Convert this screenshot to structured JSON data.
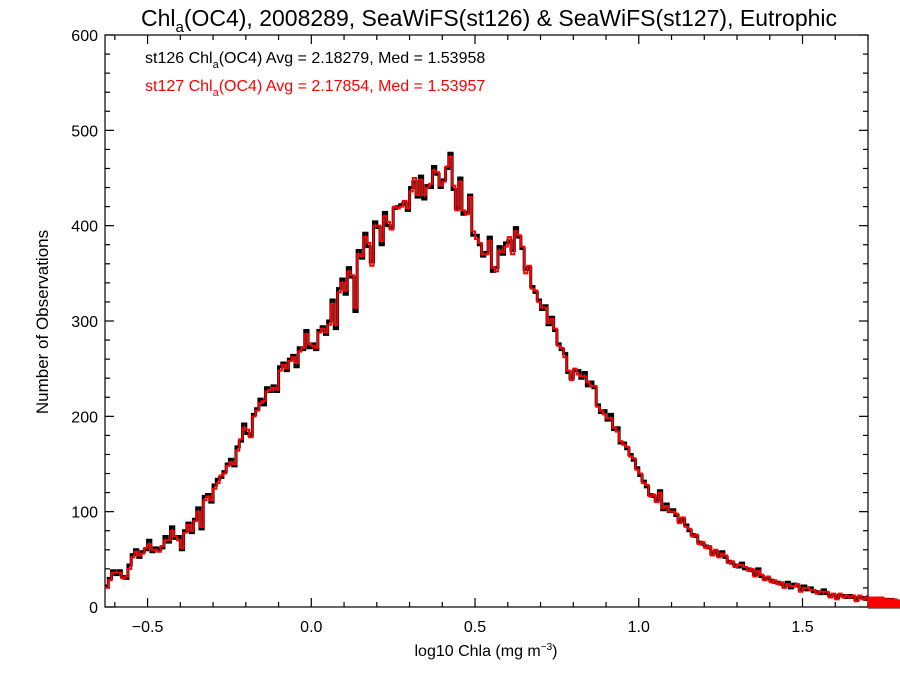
{
  "chart_data": {
    "type": "line",
    "title": {
      "pre": "Chl",
      "sub": "a",
      "post": "(OC4), 2008289, SeaWiFS(st126) & SeaWiFS(st127), Eutrophic"
    },
    "xlabel": {
      "pre": "log10 Chla (mg m",
      "sup": "−3",
      "post": ")"
    },
    "ylabel": "Number of Observations",
    "xlim": [
      -0.63,
      1.7
    ],
    "ylim": [
      0,
      600
    ],
    "x_ticks": [
      {
        "value": -0.5,
        "label": "−0.5"
      },
      {
        "value": 0.0,
        "label": "0.0"
      },
      {
        "value": 0.5,
        "label": "0.5"
      },
      {
        "value": 1.0,
        "label": "1.0"
      },
      {
        "value": 1.5,
        "label": "1.5"
      }
    ],
    "y_ticks": [
      {
        "value": 0,
        "label": "0"
      },
      {
        "value": 100,
        "label": "100"
      },
      {
        "value": 200,
        "label": "200"
      },
      {
        "value": 300,
        "label": "300"
      },
      {
        "value": 400,
        "label": "400"
      },
      {
        "value": 500,
        "label": "500"
      },
      {
        "value": 600,
        "label": "600"
      }
    ],
    "grid": false,
    "legend_position": "top-left",
    "bin_start": -0.63,
    "bin_width": 0.01,
    "series": [
      {
        "name": "st126",
        "legend": {
          "pre": "st126 Chl",
          "sub": "a",
          "post": "(OC4) Avg = 2.18279, Med = 1.53958"
        },
        "color": "#000000",
        "values": [
          22,
          30,
          38,
          34,
          38,
          32,
          30,
          44,
          55,
          60,
          52,
          58,
          60,
          70,
          58,
          62,
          60,
          62,
          74,
          68,
          84,
          72,
          74,
          60,
          80,
          88,
          78,
          92,
          104,
          82,
          116,
          118,
          110,
          128,
          134,
          136,
          142,
          150,
          155,
          148,
          168,
          174,
          192,
          182,
          180,
          202,
          208,
          218,
          212,
          230,
          226,
          232,
          226,
          252,
          256,
          248,
          260,
          264,
          252,
          272,
          270,
          290,
          272,
          276,
          270,
          290,
          294,
          286,
          300,
          322,
          292,
          334,
          344,
          328,
          356,
          346,
          310,
          374,
          366,
          392,
          378,
          362,
          404,
          398,
          380,
          414,
          400,
          398,
          418,
          420,
          422,
          424,
          416,
          440,
          446,
          430,
          452,
          428,
          442,
          440,
          462,
          454,
          440,
          448,
          460,
          476,
          438,
          418,
          450,
          412,
          414,
          432,
          390,
          390,
          380,
          368,
          372,
          388,
          352,
          356,
          378,
          370,
          382,
          384,
          374,
          398,
          388,
          376,
          354,
          356,
          336,
          330,
          322,
          312,
          316,
          296,
          304,
          290,
          276,
          270,
          266,
          246,
          240,
          248,
          248,
          240,
          246,
          232,
          236,
          230,
          212,
          204,
          206,
          196,
          202,
          186,
          188,
          172,
          172,
          166,
          160,
          154,
          146,
          138,
          132,
          126,
          118,
          116,
          112,
          122,
          102,
          108,
          100,
          102,
          96,
          90,
          92,
          86,
          80,
          76,
          74,
          68,
          66,
          64,
          62,
          56,
          58,
          54,
          58,
          52,
          48,
          46,
          44,
          42,
          46,
          40,
          40,
          38,
          34,
          40,
          32,
          30,
          30,
          28,
          26,
          26,
          24,
          22,
          26,
          20,
          24,
          22,
          18,
          22,
          18,
          20,
          16,
          16,
          14,
          18,
          14,
          12,
          12,
          10,
          12,
          12,
          10,
          12,
          10,
          8,
          10,
          10,
          8,
          10,
          8,
          8,
          6,
          8,
          8,
          6,
          6,
          8,
          6,
          6,
          5,
          6,
          4,
          5,
          4,
          6,
          4,
          4,
          3,
          4,
          4,
          5,
          3,
          3,
          2,
          3,
          2,
          2,
          2,
          3,
          2,
          2,
          1,
          2,
          1,
          1,
          1,
          0,
          1,
          1,
          0,
          1,
          0,
          0,
          0,
          0,
          0,
          0,
          0,
          0,
          0
        ]
      },
      {
        "name": "st127",
        "legend": {
          "pre": "st127 Chl",
          "sub": "a",
          "post": "(OC4) Avg = 2.17854, Med = 1.53957"
        },
        "color": "#ff0000",
        "values": [
          20,
          28,
          36,
          36,
          36,
          30,
          32,
          40,
          52,
          58,
          54,
          56,
          62,
          66,
          60,
          60,
          58,
          64,
          70,
          70,
          80,
          74,
          70,
          62,
          78,
          86,
          80,
          90,
          100,
          84,
          112,
          116,
          112,
          124,
          130,
          138,
          140,
          148,
          152,
          150,
          164,
          176,
          188,
          186,
          178,
          200,
          206,
          214,
          216,
          226,
          228,
          230,
          228,
          248,
          254,
          250,
          258,
          262,
          256,
          268,
          272,
          286,
          276,
          274,
          272,
          288,
          292,
          288,
          296,
          318,
          296,
          330,
          340,
          332,
          352,
          348,
          314,
          370,
          368,
          388,
          382,
          358,
          400,
          400,
          384,
          410,
          404,
          396,
          420,
          418,
          420,
          426,
          418,
          436,
          450,
          432,
          448,
          432,
          440,
          444,
          458,
          456,
          442,
          446,
          462,
          472,
          442,
          416,
          446,
          416,
          412,
          430,
          394,
          386,
          382,
          370,
          370,
          384,
          356,
          352,
          374,
          372,
          378,
          388,
          370,
          394,
          390,
          378,
          350,
          358,
          334,
          332,
          320,
          314,
          314,
          298,
          302,
          292,
          274,
          272,
          262,
          248,
          238,
          250,
          244,
          242,
          242,
          236,
          232,
          232,
          210,
          206,
          202,
          198,
          198,
          188,
          184,
          174,
          170,
          168,
          158,
          156,
          144,
          140,
          130,
          128,
          116,
          118,
          110,
          120,
          104,
          106,
          100,
          100,
          98,
          88,
          94,
          84,
          82,
          74,
          76,
          66,
          68,
          62,
          64,
          54,
          60,
          52,
          56,
          54,
          46,
          48,
          42,
          44,
          44,
          42,
          38,
          40,
          32,
          38,
          34,
          28,
          32,
          26,
          28,
          24,
          26,
          20,
          24,
          22,
          22,
          24,
          16,
          20,
          20,
          18,
          18,
          14,
          16,
          16,
          16,
          10,
          14,
          8,
          14,
          10,
          12,
          10,
          12,
          6,
          12,
          8,
          10,
          8,
          10,
          6,
          8,
          6,
          10,
          4,
          8,
          6,
          8,
          4,
          7,
          4,
          6,
          3,
          6,
          4,
          6,
          2,
          5,
          3,
          4,
          4,
          2,
          3,
          3,
          2,
          3,
          1,
          3,
          1,
          2,
          1,
          2,
          0,
          2,
          0,
          1,
          1,
          1,
          1,
          0,
          0,
          1,
          0,
          0,
          0,
          0
        ]
      }
    ]
  }
}
